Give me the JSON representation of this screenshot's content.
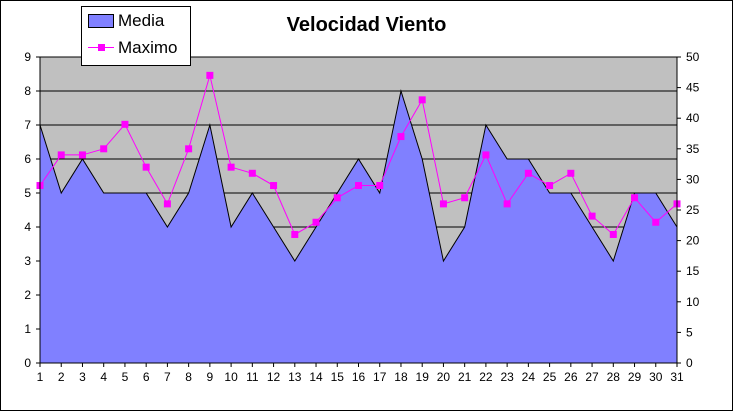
{
  "chart_data": {
    "type": "area",
    "title": "Velocidad Viento",
    "x": [
      "1",
      "2",
      "3",
      "4",
      "5",
      "6",
      "7",
      "8",
      "9",
      "10",
      "11",
      "12",
      "13",
      "14",
      "15",
      "16",
      "17",
      "18",
      "19",
      "20",
      "21",
      "22",
      "23",
      "24",
      "25",
      "26",
      "27",
      "28",
      "29",
      "30",
      "31"
    ],
    "series": [
      {
        "name": "Media",
        "type": "area",
        "axis": "left",
        "color": "#8080ff",
        "values": [
          7,
          5,
          6,
          5,
          5,
          5,
          4,
          5,
          7,
          4,
          5,
          4,
          3,
          4,
          5,
          6,
          5,
          8,
          6,
          3,
          4,
          7,
          6,
          6,
          5,
          5,
          4,
          3,
          5,
          5,
          4
        ]
      },
      {
        "name": "Maximo",
        "type": "line",
        "axis": "right",
        "color": "#ff00ff",
        "values": [
          29,
          34,
          34,
          35,
          39,
          32,
          26,
          35,
          47,
          32,
          31,
          29,
          21,
          23,
          27,
          29,
          29,
          37,
          43,
          26,
          27,
          34,
          26,
          31,
          29,
          31,
          24,
          21,
          27,
          23,
          26
        ]
      }
    ],
    "y_left": {
      "ylim": [
        0,
        9
      ],
      "ticks": [
        "0",
        "1",
        "2",
        "3",
        "4",
        "5",
        "6",
        "7",
        "8",
        "9"
      ]
    },
    "y_right": {
      "ylim": [
        0,
        50
      ],
      "ticks": [
        "0",
        "5",
        "10",
        "15",
        "20",
        "25",
        "30",
        "35",
        "40",
        "45",
        "50"
      ]
    },
    "grid": true,
    "plot_background": "#c0c0c0",
    "legend_position": "top-left"
  }
}
